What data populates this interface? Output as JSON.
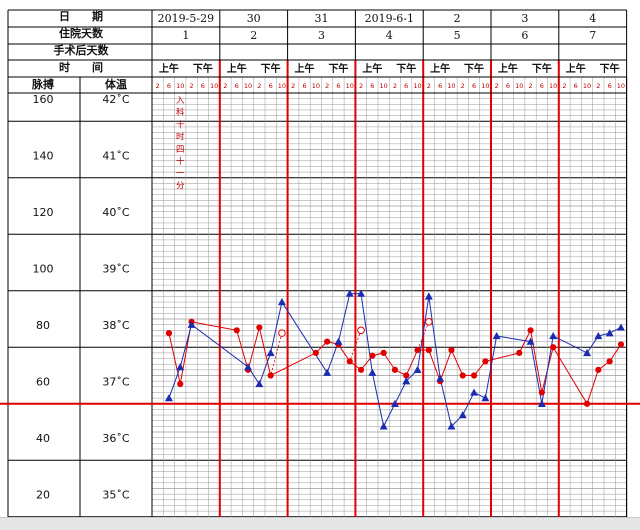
{
  "header": {
    "date_label": "日　　期",
    "inpatient_days_label": "住院天数",
    "post_op_days_label": "手术后天数",
    "time_label": "时　　间",
    "pulse_label": "脉搏",
    "temp_label": "体温"
  },
  "days": [
    {
      "date": "2019-5-29",
      "inpatient_day": "1"
    },
    {
      "date": "30",
      "inpatient_day": "2"
    },
    {
      "date": "31",
      "inpatient_day": "3"
    },
    {
      "date": "2019-6-1",
      "inpatient_day": "4"
    },
    {
      "date": "2",
      "inpatient_day": "5"
    },
    {
      "date": "3",
      "inpatient_day": "6"
    },
    {
      "date": "4",
      "inpatient_day": "7"
    }
  ],
  "am_label": "上午",
  "pm_label": "下午",
  "hours": [
    "2",
    "6",
    "10",
    "2",
    "6",
    "10"
  ],
  "admission_note": [
    "入",
    "科",
    "十",
    "时",
    "四",
    "十",
    "一",
    "分"
  ],
  "chart_data": {
    "type": "line",
    "title": "",
    "x_unit": "4-hour slot (7 days × 6 slots: 2,6,10,2,6,10)",
    "pulse_axis": {
      "ticks": [
        "160",
        "140",
        "120",
        "100",
        "80",
        "60",
        "40",
        "20"
      ],
      "range": [
        20,
        160
      ]
    },
    "temp_axis": {
      "ticks": [
        "42˚C",
        "41˚C",
        "40˚C",
        "39˚C",
        "38˚C",
        "37˚C",
        "36˚C",
        "35˚C"
      ],
      "range": [
        35,
        42
      ]
    },
    "reference_line": {
      "value_c": 37.0,
      "color": "#e00000"
    },
    "series": [
      {
        "marker": "circle",
        "color": "#e00000",
        "points": [
          {
            "x": 2,
            "y": 38.25
          },
          {
            "x": 3,
            "y": 37.35
          },
          {
            "x": 4,
            "y": 38.45
          },
          {
            "x": 8,
            "y": 38.3
          },
          {
            "x": 9,
            "y": 37.6
          },
          {
            "x": 10,
            "y": 38.35
          },
          {
            "x": 11,
            "y": 37.5
          },
          {
            "x": 15,
            "y": 37.9
          },
          {
            "x": 16,
            "y": 38.1
          },
          {
            "x": 17,
            "y": 38.05
          },
          {
            "x": 18,
            "y": 37.75
          },
          {
            "x": 19,
            "y": 37.6
          },
          {
            "x": 20,
            "y": 37.85
          },
          {
            "x": 21,
            "y": 37.9
          },
          {
            "x": 22,
            "y": 37.6
          },
          {
            "x": 23,
            "y": 37.5
          },
          {
            "x": 24,
            "y": 37.95
          },
          {
            "x": 25,
            "y": 37.95
          },
          {
            "x": 26,
            "y": 37.4
          },
          {
            "x": 27,
            "y": 37.95
          },
          {
            "x": 28,
            "y": 37.5
          },
          {
            "x": 29,
            "y": 37.5
          },
          {
            "x": 30,
            "y": 37.75
          },
          {
            "x": 33,
            "y": 37.9
          },
          {
            "x": 34,
            "y": 38.3
          },
          {
            "x": 35,
            "y": 37.2
          },
          {
            "x": 36,
            "y": 38.0
          },
          {
            "x": 39,
            "y": 37.0
          },
          {
            "x": 40,
            "y": 37.6
          },
          {
            "x": 41,
            "y": 37.75
          },
          {
            "x": 42,
            "y": 38.05
          }
        ]
      },
      {
        "marker": "triangle",
        "color": "#1c2cb0",
        "points": [
          {
            "x": 2,
            "y": 37.1
          },
          {
            "x": 3,
            "y": 37.65
          },
          {
            "x": 4,
            "y": 38.4
          },
          {
            "x": 9,
            "y": 37.65
          },
          {
            "x": 10,
            "y": 37.35
          },
          {
            "x": 11,
            "y": 37.9
          },
          {
            "x": 12,
            "y": 38.8
          },
          {
            "x": 16,
            "y": 37.55
          },
          {
            "x": 17,
            "y": 38.1
          },
          {
            "x": 18,
            "y": 38.95
          },
          {
            "x": 19,
            "y": 38.95
          },
          {
            "x": 20,
            "y": 37.55
          },
          {
            "x": 21,
            "y": 36.6
          },
          {
            "x": 22,
            "y": 37.0
          },
          {
            "x": 23,
            "y": 37.4
          },
          {
            "x": 24,
            "y": 37.6
          },
          {
            "x": 25,
            "y": 38.9
          },
          {
            "x": 26,
            "y": 37.45
          },
          {
            "x": 27,
            "y": 36.6
          },
          {
            "x": 28,
            "y": 36.8
          },
          {
            "x": 29,
            "y": 37.2
          },
          {
            "x": 30,
            "y": 37.1
          },
          {
            "x": 31,
            "y": 38.2
          },
          {
            "x": 34,
            "y": 38.1
          },
          {
            "x": 35,
            "y": 37.0
          },
          {
            "x": 36,
            "y": 38.2
          },
          {
            "x": 39,
            "y": 37.9
          },
          {
            "x": 40,
            "y": 38.2
          },
          {
            "x": 41,
            "y": 38.25
          },
          {
            "x": 42,
            "y": 38.35
          }
        ]
      }
    ],
    "open_circles": [
      {
        "x": 12,
        "y": 38.25
      },
      {
        "x": 19,
        "y": 38.3
      },
      {
        "x": 25,
        "y": 38.45
      }
    ],
    "connectors": [
      [
        12,
        11
      ],
      [
        19,
        18
      ],
      [
        25,
        24
      ]
    ]
  }
}
